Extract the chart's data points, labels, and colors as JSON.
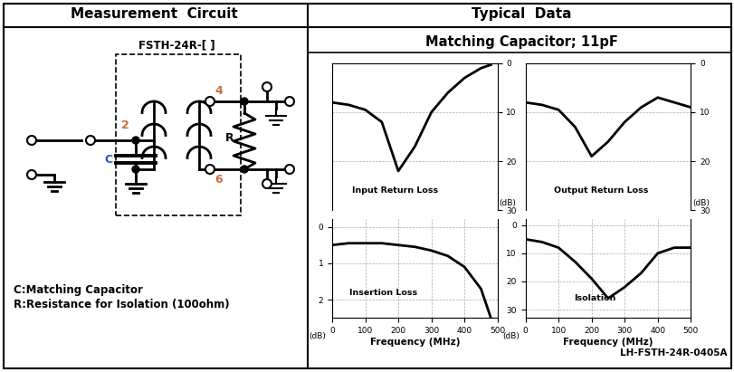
{
  "left_title": "Measurement  Circuit",
  "right_title": "Typical  Data",
  "cap_title": "Matching Capacitor; 11pF",
  "footnote": "LH-FSTH-24R-0405A",
  "circuit_label": "FSTH-24R-[ ]",
  "bottom_text_1": "C:Matching Capacitor",
  "bottom_text_2": "R:Resistance for Isolation (100ohm)",
  "freq_irl": [
    0,
    50,
    100,
    150,
    200,
    250,
    300,
    350,
    400,
    450,
    480
  ],
  "irl_vals": [
    8,
    8.5,
    9.5,
    12,
    22,
    17,
    10,
    6,
    3,
    1,
    0.3
  ],
  "freq_ins": [
    0,
    50,
    100,
    150,
    200,
    250,
    300,
    350,
    400,
    450,
    480
  ],
  "ins_vals": [
    0.5,
    0.45,
    0.45,
    0.45,
    0.5,
    0.55,
    0.65,
    0.8,
    1.1,
    1.7,
    2.5
  ],
  "freq_orl": [
    0,
    50,
    100,
    150,
    200,
    250,
    300,
    350,
    400,
    450,
    500
  ],
  "orl_vals": [
    8,
    8.5,
    9.5,
    13,
    19,
    16,
    12,
    9,
    7,
    8,
    9
  ],
  "freq_iso": [
    0,
    50,
    100,
    150,
    200,
    250,
    300,
    350,
    400,
    450,
    500
  ],
  "iso_vals": [
    5,
    6,
    8,
    13,
    19,
    26,
    22,
    17,
    10,
    8,
    8
  ],
  "bg_color": "#ffffff",
  "label2_color": "#c87040",
  "labelC_color": "#3050c8"
}
